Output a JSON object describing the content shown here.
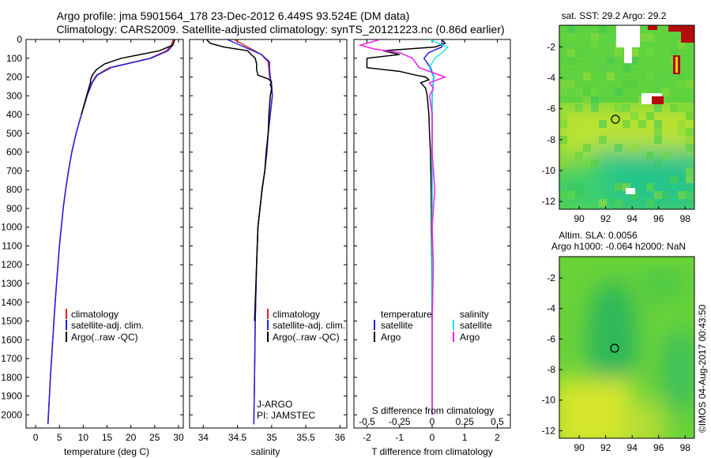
{
  "header": {
    "line1": "Argo profile: jma 5901564_178 23-Dec-2012 6.449S 93.524E (DM data)",
    "line2": "Climatology: CARS2009. Satellite-adjusted climatology: synTS_20121223.nc (0.86d earlier)"
  },
  "colors": {
    "climatology": "#e02020",
    "satellite": "#1f1fe6",
    "argo": "#000000",
    "argo_salinity": "#ee20ee",
    "satellite_salinity": "#20e6e6"
  },
  "chart_data": [
    {
      "type": "line",
      "title": "",
      "xlabel": "temperature (deg C)",
      "ylabel": "",
      "xlim": [
        -2,
        31
      ],
      "ylim": [
        2070,
        0
      ],
      "xticks": [
        0,
        5,
        10,
        15,
        20,
        25,
        30
      ],
      "yticks": [
        0,
        100,
        200,
        300,
        400,
        500,
        600,
        700,
        800,
        900,
        1000,
        1100,
        1200,
        1300,
        1400,
        1500,
        1600,
        1700,
        1800,
        1900,
        2000
      ],
      "legend": [
        "climatology",
        "satellite-adj. clim.",
        "Argo(..raw -QC)"
      ],
      "series": [
        {
          "name": "climatology",
          "depth": [
            0,
            30,
            60,
            100,
            150,
            190,
            230,
            300,
            400,
            500,
            600,
            700,
            800,
            900,
            1000,
            1100,
            1200,
            1400,
            1600,
            1800,
            2000,
            2050
          ],
          "values": [
            28.9,
            28.5,
            27.5,
            24.0,
            15.5,
            12.8,
            11.8,
            10.8,
            9.6,
            8.5,
            7.6,
            6.9,
            6.3,
            5.8,
            5.4,
            5.0,
            4.7,
            4.1,
            3.6,
            3.1,
            2.7,
            2.6
          ]
        },
        {
          "name": "satellite-adj. clim.",
          "depth": [
            0,
            30,
            60,
            100,
            150,
            190,
            230,
            300,
            400,
            500,
            600,
            700,
            800,
            900,
            1000,
            1100,
            1200,
            1400,
            1600,
            1800,
            2000,
            2050
          ],
          "values": [
            29.2,
            28.8,
            27.8,
            24.2,
            15.8,
            12.9,
            11.9,
            10.8,
            9.6,
            8.5,
            7.6,
            6.9,
            6.3,
            5.8,
            5.4,
            5.0,
            4.7,
            4.1,
            3.6,
            3.1,
            2.7,
            2.6
          ]
        },
        {
          "name": "Argo",
          "depth": [
            0,
            30,
            60,
            80,
            100,
            130,
            160,
            180,
            190,
            210,
            230,
            300,
            400
          ],
          "values": [
            29.2,
            28.8,
            26.0,
            22.0,
            18.0,
            14.5,
            12.8,
            12.2,
            11.9,
            11.6,
            11.5,
            10.7,
            9.6
          ]
        }
      ]
    },
    {
      "type": "line",
      "title": "",
      "xlabel": "salinity",
      "ylabel": "",
      "xlim": [
        33.8,
        36.1
      ],
      "ylim": [
        2070,
        0
      ],
      "xticks": [
        34,
        34.5,
        35,
        35.5,
        36
      ],
      "legend": [
        "climatology",
        "satellite-adj. clim.",
        "Argo(..raw -QC)"
      ],
      "annotations": [
        "J-ARGO",
        "PI: JAMSTEC"
      ],
      "series": [
        {
          "name": "climatology",
          "depth": [
            0,
            40,
            80,
            120,
            160,
            200,
            240,
            300,
            400,
            500,
            600,
            700,
            800,
            900,
            1000,
            1200,
            1500,
            1800,
            2050
          ],
          "values": [
            34.45,
            34.65,
            34.85,
            34.95,
            34.96,
            34.97,
            35.0,
            35.01,
            34.98,
            34.95,
            34.93,
            34.9,
            34.86,
            34.83,
            34.8,
            34.78,
            34.76,
            34.75,
            34.74
          ]
        },
        {
          "name": "satellite-adj. clim.",
          "depth": [
            0,
            40,
            80,
            120,
            160,
            200,
            240,
            300,
            400,
            500,
            600,
            700,
            800,
            900,
            1000,
            1200,
            1500,
            1800,
            2050
          ],
          "values": [
            34.35,
            34.6,
            34.85,
            34.97,
            34.97,
            34.98,
            35.0,
            35.01,
            34.98,
            34.95,
            34.93,
            34.9,
            34.86,
            34.83,
            34.8,
            34.78,
            34.76,
            34.75,
            34.74
          ]
        },
        {
          "name": "Argo",
          "depth": [
            0,
            20,
            40,
            60,
            80,
            100,
            130,
            160,
            190,
            210,
            225,
            240,
            260,
            300,
            400,
            500,
            600,
            700,
            800,
            900,
            1000,
            1200,
            1400,
            1500
          ],
          "values": [
            34.05,
            34.1,
            34.3,
            34.65,
            34.7,
            34.76,
            34.78,
            34.78,
            34.8,
            34.95,
            35.0,
            34.98,
            35.0,
            34.98,
            34.96,
            34.95,
            34.92,
            34.9,
            34.86,
            34.83,
            34.8,
            34.78,
            34.76,
            34.75
          ]
        }
      ]
    },
    {
      "type": "line",
      "title": "",
      "xlabel": "T difference from climatology",
      "ylabel": "",
      "secondary_xlabel": "S difference from climatology",
      "xlim": [
        -2.4,
        2.4
      ],
      "ylim": [
        2070,
        0
      ],
      "xticks_T": [
        -2,
        -1,
        0,
        1,
        2
      ],
      "xticks_S": [
        -0.5,
        -0.25,
        0,
        0.25,
        0.5
      ],
      "legend_temperature": [
        "temperature",
        "satellite",
        "Argo"
      ],
      "legend_salinity": [
        "salinity",
        "satellite",
        "Argo"
      ],
      "series": [
        {
          "name": "temperature satellite",
          "depth": [
            0,
            40,
            70,
            100,
            150,
            200,
            300,
            500,
            1000,
            1500,
            2000
          ],
          "values": [
            0.3,
            0.3,
            -0.1,
            -0.25,
            -0.05,
            0.05,
            0.0,
            0.0,
            0.0,
            0.0,
            0.0
          ]
        },
        {
          "name": "temperature Argo",
          "depth": [
            0,
            20,
            40,
            60,
            80,
            100,
            150,
            170,
            190,
            200,
            215,
            230,
            260,
            300,
            400,
            500,
            600,
            800,
            1000,
            1200,
            1500
          ],
          "values": [
            0.3,
            0.4,
            0.1,
            -1.5,
            -1.0,
            -2.0,
            -2.0,
            -1.0,
            -0.5,
            -0.2,
            -0.1,
            -0.35,
            -0.2,
            -0.15,
            -0.1,
            -0.08,
            -0.05,
            -0.03,
            -0.02,
            -0.01,
            0.0
          ]
        },
        {
          "name": "salinity satellite",
          "depth": [
            0,
            40,
            70,
            100,
            150,
            200,
            300,
            500,
            1000,
            1500,
            2000
          ],
          "values": [
            -0.02,
            0.12,
            0.08,
            0.02,
            -0.02,
            0.01,
            0.0,
            0.0,
            0.0,
            0.0,
            0.0
          ]
        },
        {
          "name": "salinity Argo",
          "depth": [
            0,
            30,
            50,
            70,
            100,
            150,
            200,
            230,
            260,
            300,
            400,
            600,
            800,
            1000,
            1200,
            1500,
            1800,
            2000
          ],
          "values": [
            -0.4,
            -0.55,
            -0.45,
            -0.25,
            -0.15,
            -0.1,
            0.1,
            -0.02,
            0.01,
            -0.02,
            0.0,
            0.0,
            0.02,
            0.0,
            0.01,
            0.0,
            0.0,
            0.0
          ]
        }
      ]
    },
    {
      "type": "heatmap",
      "title": "sat. SST: 29.2 Argo: 29.2",
      "xlim": [
        88.5,
        98.7
      ],
      "ylim": [
        -12.5,
        -0.6
      ],
      "xticks": [
        90,
        92,
        94,
        96,
        98
      ],
      "yticks": [
        -2,
        -4,
        -6,
        -8,
        -10,
        -12
      ],
      "marker": {
        "lon": 93.524,
        "lat": -6.449
      }
    },
    {
      "type": "heatmap",
      "title": "Altim. SLA: 0.0056",
      "subtitle": "Argo h1000: -0.064 h2000: NaN",
      "xlim": [
        88.5,
        98.7
      ],
      "ylim": [
        -12.5,
        -0.6
      ],
      "xticks": [
        90,
        92,
        94,
        96,
        98
      ],
      "yticks": [
        -2,
        -4,
        -6,
        -8,
        -10,
        -12
      ],
      "marker": {
        "lon": 93.524,
        "lat": -6.449
      }
    }
  ],
  "side_stamp": "©IMOS 04-Aug-2017 00:43:50"
}
